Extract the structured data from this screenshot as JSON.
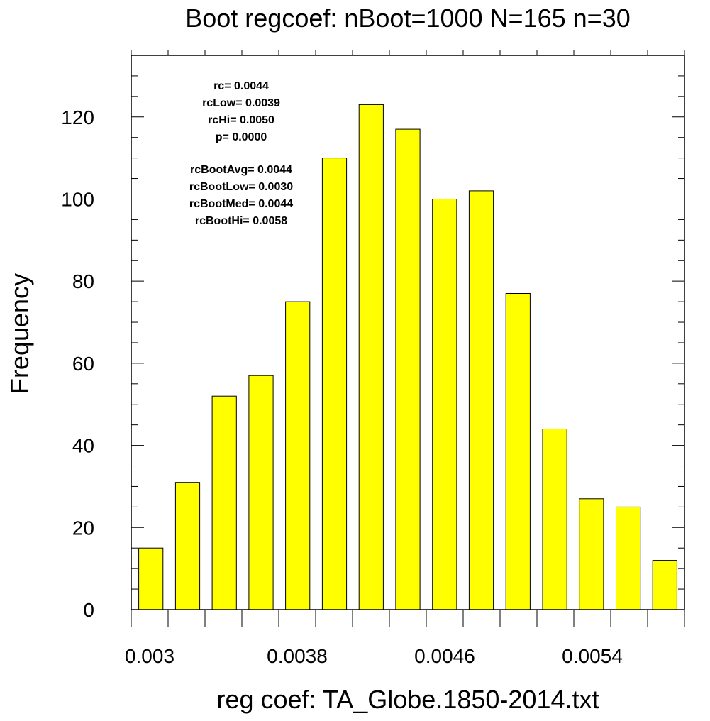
{
  "chart_data": {
    "type": "bar",
    "title": "Boot regcoef: nBoot=1000 N=165 n=30",
    "xlabel": "reg coef: TA_Globe.1850-2014.txt",
    "ylabel": "Frequency",
    "categories": [
      "0.0030",
      "0.0032",
      "0.0034",
      "0.0036",
      "0.0038",
      "0.0040",
      "0.0042",
      "0.0044",
      "0.0046",
      "0.0048",
      "0.0050",
      "0.0052",
      "0.0054",
      "0.0056",
      "0.0058"
    ],
    "values": [
      15,
      31,
      52,
      57,
      75,
      110,
      123,
      117,
      100,
      102,
      77,
      44,
      27,
      25,
      12
    ],
    "bar_color": "#ffff00",
    "ylim": [
      0,
      135
    ],
    "xlim": [
      0.0029,
      0.0059
    ],
    "y_ticks": [
      0,
      20,
      40,
      60,
      80,
      100,
      120
    ],
    "y_tick_labels": [
      "0",
      "20",
      "40",
      "60",
      "80",
      "100",
      "120"
    ],
    "x_tick_labels": [
      "0.003",
      "0.0038",
      "0.0046",
      "0.0054"
    ],
    "annotations_group1": [
      "rc= 0.0044",
      "rcLow= 0.0039",
      "rcHi= 0.0050",
      "p= 0.0000"
    ],
    "annotations_group2": [
      "rcBootAvg= 0.0044",
      "rcBootLow= 0.0030",
      "rcBootMed= 0.0044",
      "rcBootHi= 0.0058"
    ],
    "grid": false,
    "legend": "none"
  }
}
